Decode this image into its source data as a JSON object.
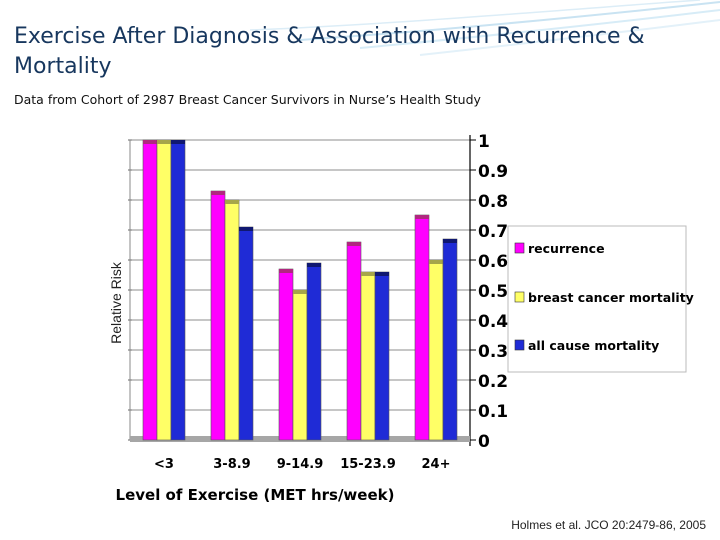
{
  "slide": {
    "title": "Exercise After Diagnosis & Association with  Recurrence & Mortality",
    "subtitle": "Data from Cohort of 2987 Breast Cancer Survivors in Nurse’s Health Study",
    "citation": "Holmes et al. JCO 20:2479-86, 2005"
  },
  "chart_data": {
    "type": "bar",
    "title": "",
    "xlabel": "Level of Exercise (MET hrs/week)",
    "ylabel": "Relative Risk",
    "categories": [
      "<3",
      "3-8.9",
      "9-14.9",
      "15-23.9",
      "24+"
    ],
    "series": [
      {
        "name": "recurrence",
        "color": "#ff00ff",
        "values": [
          1.0,
          0.83,
          0.57,
          0.66,
          0.75
        ]
      },
      {
        "name": "breast cancer mortality",
        "color": "#ffff66",
        "values": [
          1.0,
          0.8,
          0.5,
          0.56,
          0.6
        ]
      },
      {
        "name": "all cause mortality",
        "color": "#1f2bd6",
        "values": [
          1.0,
          0.71,
          0.59,
          0.56,
          0.67
        ]
      }
    ],
    "ylim": [
      0,
      1
    ],
    "yticks": [
      "0",
      "0.1",
      "0.2",
      "0.3",
      "0.4",
      "0.5",
      "0.6",
      "0.7",
      "0.8",
      "0.9",
      "1"
    ],
    "grid": true,
    "legend_position": "right"
  }
}
